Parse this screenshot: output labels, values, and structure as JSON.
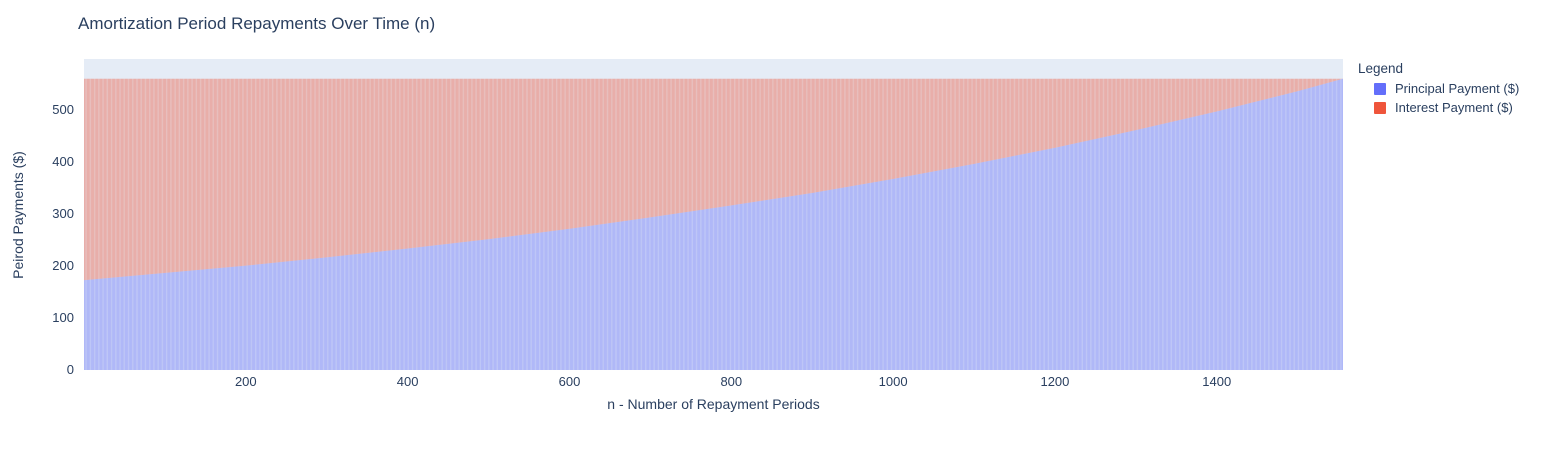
{
  "chart_data": {
    "type": "bar",
    "stacked": true,
    "title": "Amortization Period Repayments Over Time (n)",
    "xlabel": "n - Number of Repayment Periods",
    "ylabel": "Peirod Payments ($)",
    "legend_title": "Legend",
    "legend_position": "right",
    "grid": false,
    "plot_bg": "#E5ECF6",
    "paper_bg": "#FFFFFF",
    "font_color": "#2a3f5f",
    "xlim": [
      0,
      1556
    ],
    "ylim": [
      0,
      599
    ],
    "x_ticks": [
      200,
      400,
      600,
      800,
      1000,
      1200,
      1400
    ],
    "y_ticks": [
      0,
      100,
      200,
      300,
      400,
      500
    ],
    "n_periods": 1556,
    "total_payment_per_period": 561,
    "bar_opacity": 0.55,
    "sample_x": [
      0,
      100,
      200,
      300,
      400,
      500,
      600,
      700,
      800,
      900,
      1000,
      1100,
      1200,
      1300,
      1400,
      1500,
      1556
    ],
    "series": [
      {
        "name": "Principal Payment ($)",
        "color": "#636EFA",
        "values": [
          173,
          187,
          201,
          217,
          234,
          252,
          272,
          294,
          317,
          341,
          368,
          397,
          428,
          462,
          498,
          537,
          561
        ]
      },
      {
        "name": "Interest Payment ($)",
        "color": "#EF553B",
        "values": [
          388,
          374,
          360,
          344,
          327,
          309,
          289,
          267,
          244,
          220,
          193,
          164,
          133,
          99,
          63,
          24,
          0
        ]
      }
    ]
  }
}
